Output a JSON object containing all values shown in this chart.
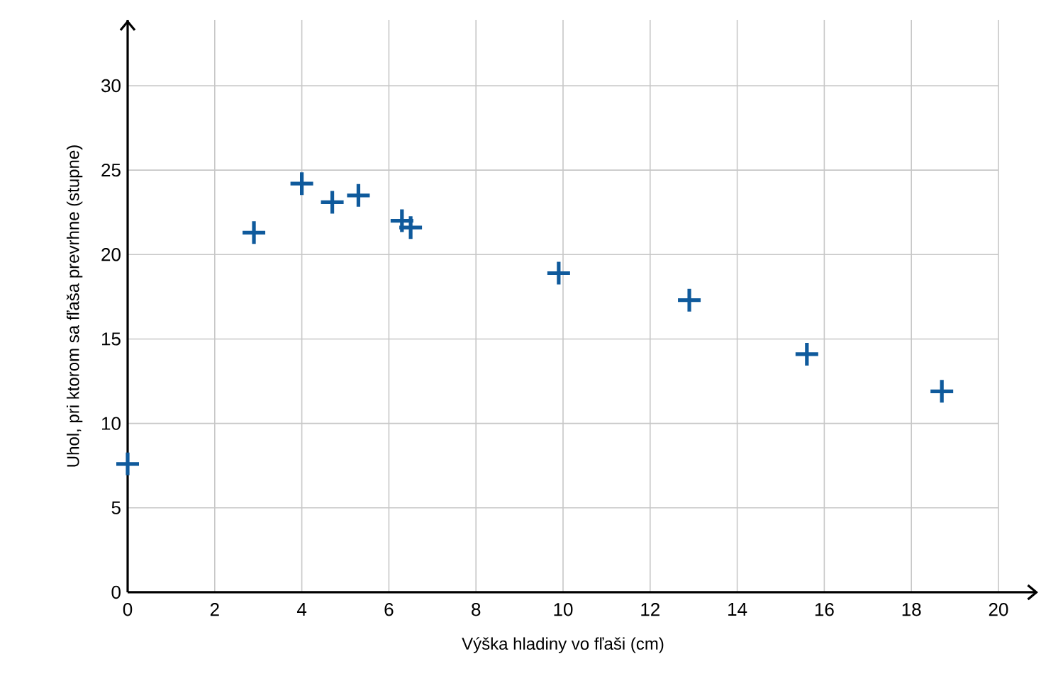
{
  "chart_data": {
    "type": "scatter",
    "xlabel": "Výška hladiny vo fľaši (cm)",
    "ylabel": "Uhol, pri ktorom sa fľaša prevrhne (stupne)",
    "x": [
      0,
      2.9,
      4.0,
      4.7,
      5.3,
      6.3,
      6.5,
      9.9,
      12.9,
      15.6,
      18.7
    ],
    "values": [
      7.6,
      21.3,
      24.2,
      23.1,
      23.5,
      22.0,
      21.6,
      18.9,
      17.3,
      14.1,
      11.9
    ],
    "color": "#0f5a9c",
    "marker": "cross",
    "grid": true,
    "xlim": [
      0,
      20
    ],
    "ylim": [
      0,
      33.9
    ],
    "xticks": [
      0,
      2,
      4,
      6,
      8,
      10,
      12,
      14,
      16,
      18,
      20
    ],
    "yticks": [
      0,
      5,
      10,
      15,
      20,
      25,
      30
    ]
  }
}
